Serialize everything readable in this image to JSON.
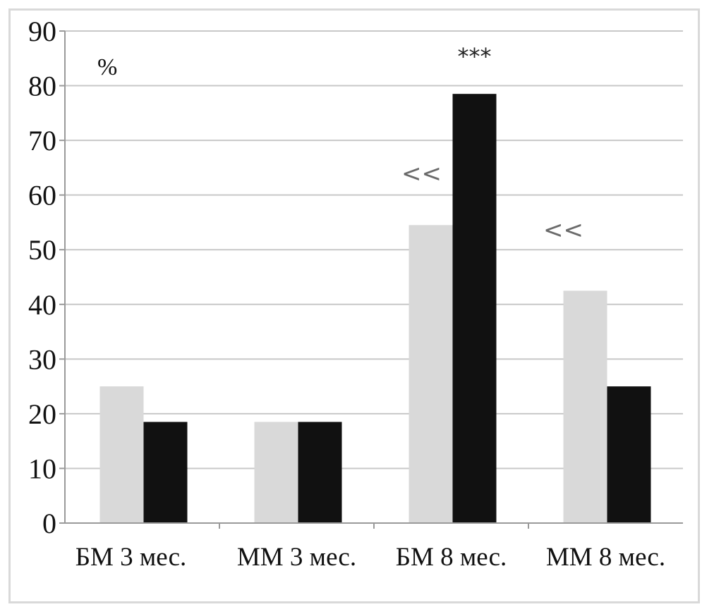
{
  "chart_data": {
    "type": "bar",
    "title": "",
    "xlabel": "",
    "ylabel": "",
    "unit_label": "%",
    "categories": [
      "БМ 3 мес.",
      "ММ 3 мес.",
      "БМ 8 мес.",
      "ММ 8 мес."
    ],
    "series": [
      {
        "color": "#d9d9d9",
        "values": [
          25,
          18.5,
          54.5,
          42.5
        ]
      },
      {
        "color": "#111111",
        "values": [
          18.5,
          18.5,
          78.5,
          25
        ]
      }
    ],
    "ylim": [
      0,
      90
    ],
    "yticks": [
      "0",
      "10",
      "20",
      "30",
      "40",
      "50",
      "60",
      "70",
      "80",
      "90"
    ],
    "grid": true,
    "legend": "none",
    "annotations": [
      {
        "text": "***",
        "category": 2,
        "series": 1
      },
      {
        "text": "<<",
        "category": 2,
        "series": 0
      },
      {
        "text": "<<",
        "category": 3,
        "series": 0
      }
    ]
  }
}
